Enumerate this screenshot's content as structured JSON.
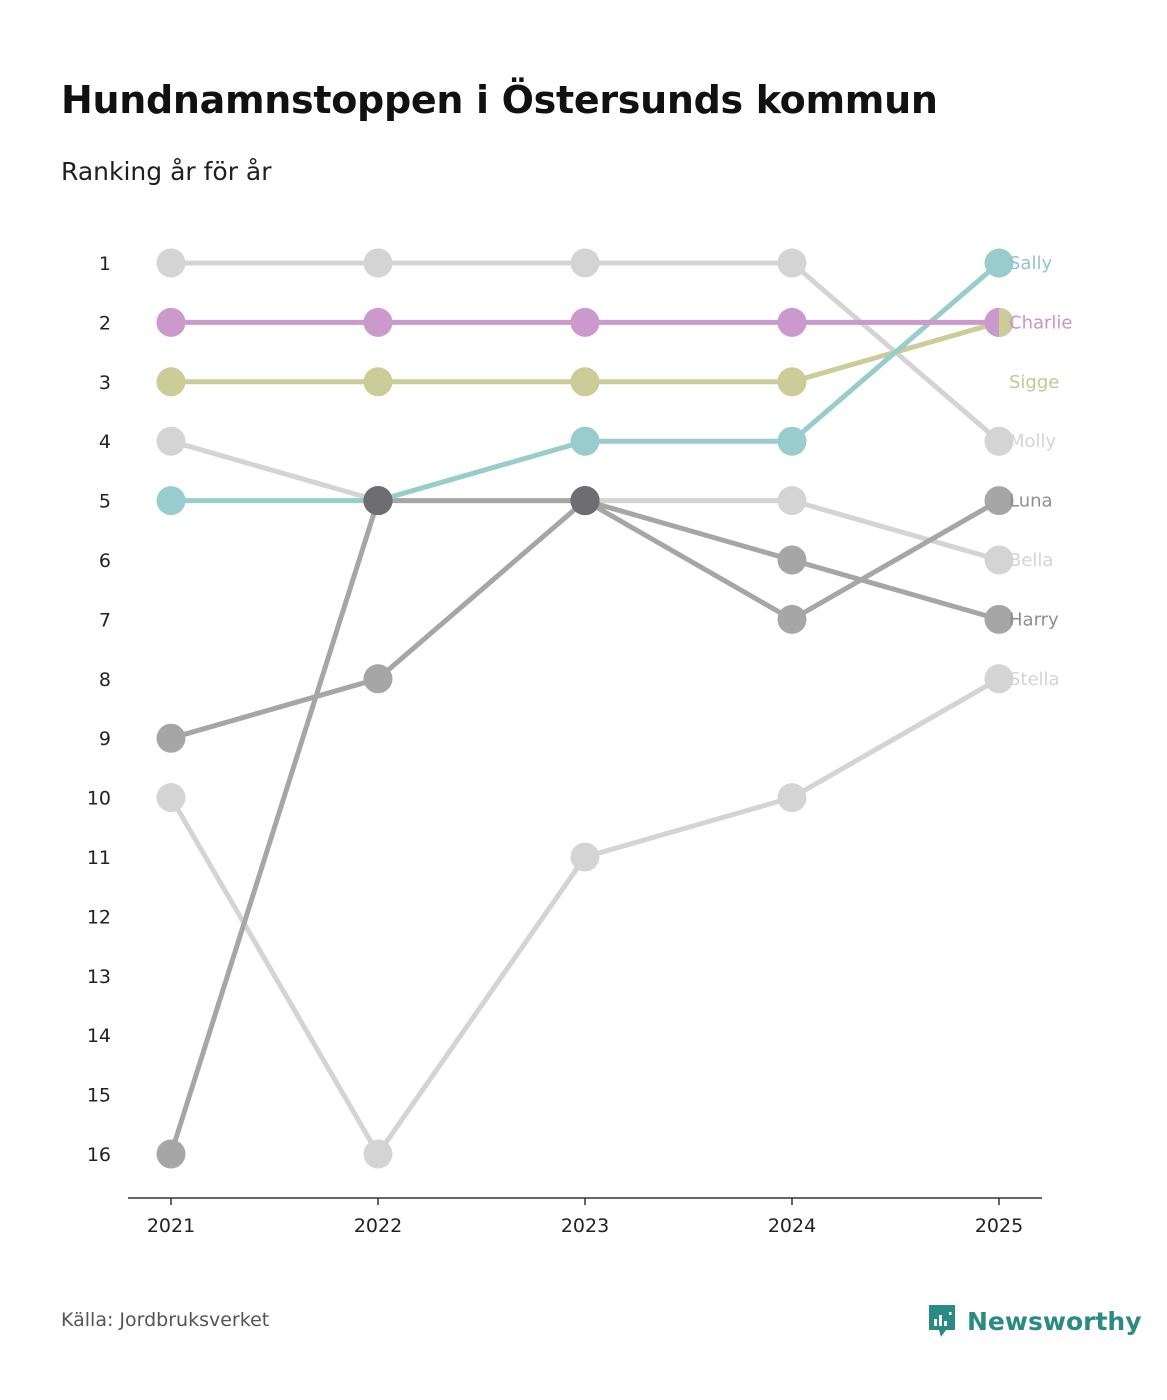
{
  "title": "Hundnamnstoppen i Östersunds kommun",
  "subtitle": "Ranking år för år",
  "source": "Källa: Jordbruksverket",
  "brand": "Newsworthy",
  "brand_color": "#2a8a84",
  "chart_data": {
    "type": "line",
    "chart_kind": "bump",
    "title": "Hundnamnstoppen i Östersunds kommun",
    "subtitle": "Ranking år för år",
    "xlabel": "",
    "ylabel": "",
    "x": [
      "2021",
      "2022",
      "2023",
      "2024",
      "2025"
    ],
    "y_ticks": [
      1,
      2,
      3,
      4,
      5,
      6,
      7,
      8,
      9,
      10,
      11,
      12,
      13,
      14,
      15,
      16
    ],
    "ylim": [
      1,
      16
    ],
    "y_inverted": true,
    "series": [
      {
        "name": "Molly",
        "values": [
          1,
          1,
          1,
          1,
          4
        ],
        "color": "#d4d4d4",
        "label_color": "#d4d4d4"
      },
      {
        "name": "Bella",
        "values": [
          4,
          5,
          5,
          5,
          6
        ],
        "color": "#d4d4d4",
        "label_color": "#d4d4d4"
      },
      {
        "name": "Stella",
        "values": [
          10,
          16,
          11,
          10,
          8
        ],
        "color": "#d4d4d4",
        "label_color": "#d4d4d4"
      },
      {
        "name": "Luna",
        "values": [
          9,
          8,
          5,
          7,
          5
        ],
        "color": "#a6a6a6",
        "label_color": "#8e8e8e"
      },
      {
        "name": "Harry",
        "values": [
          16,
          5,
          5,
          6,
          7
        ],
        "color": "#a6a6a6",
        "label_color": "#8e8e8e"
      },
      {
        "name": "Sigge",
        "values": [
          3,
          3,
          3,
          3,
          2
        ],
        "color": "#cccc99",
        "label_color": "#c9c48f"
      },
      {
        "name": "Sally",
        "values": [
          5,
          5,
          4,
          4,
          1
        ],
        "color": "#99cccc",
        "label_color": "#8fc7c7"
      },
      {
        "name": "Charlie",
        "values": [
          2,
          2,
          2,
          2,
          2
        ],
        "color": "#cc99cc",
        "label_color": "#c895c8"
      }
    ],
    "overlap_marker_color": "#6e6e72"
  }
}
